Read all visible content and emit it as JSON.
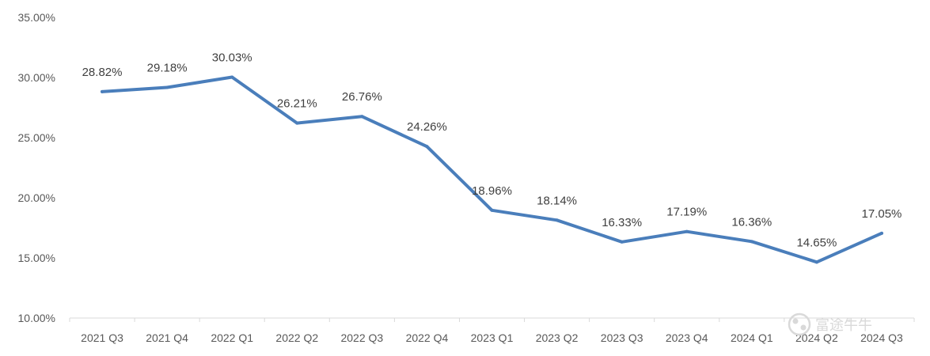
{
  "chart_data": {
    "type": "line",
    "title": "",
    "xlabel": "",
    "ylabel": "",
    "categories": [
      "2021 Q3",
      "2021 Q4",
      "2022 Q1",
      "2022 Q2",
      "2022 Q3",
      "2022 Q4",
      "2023 Q1",
      "2023 Q2",
      "2023 Q3",
      "2023 Q4",
      "2024 Q1",
      "2024 Q2",
      "2024 Q3"
    ],
    "series": [
      {
        "values": [
          28.82,
          29.18,
          30.03,
          26.21,
          26.76,
          24.26,
          18.96,
          18.14,
          16.33,
          17.19,
          16.36,
          14.65,
          17.05
        ],
        "labels": [
          "28.82%",
          "29.18%",
          "30.03%",
          "26.21%",
          "26.76%",
          "24.26%",
          "18.96%",
          "18.14%",
          "16.33%",
          "17.19%",
          "16.36%",
          "14.65%",
          "17.05%"
        ],
        "color": "#4a7ebb"
      }
    ],
    "ylim": [
      10,
      35
    ],
    "yticks": [
      10,
      15,
      20,
      25,
      30,
      35
    ],
    "ytick_labels": [
      "10.00%",
      "15.00%",
      "20.00%",
      "25.00%",
      "30.00%",
      "35.00%"
    ],
    "grid": false,
    "legend": "none"
  },
  "watermark": {
    "text": "富途牛牛",
    "icon": "futu-logo-icon"
  },
  "colors": {
    "line": "#4a7ebb",
    "axis": "#d9d9d9"
  }
}
